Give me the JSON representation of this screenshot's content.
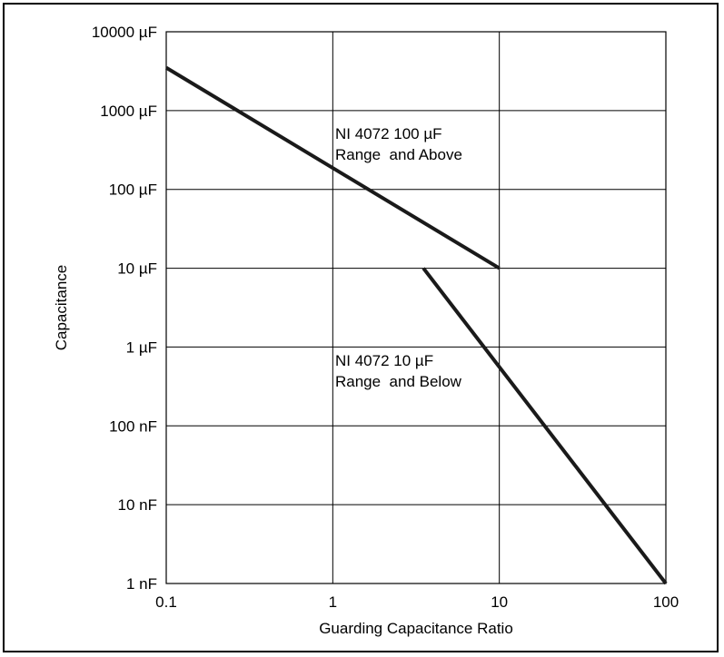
{
  "chart_data": {
    "type": "line",
    "title": "",
    "xlabel": "Guarding Capacitance Ratio",
    "ylabel": "Capacitance",
    "x_scale": "log",
    "y_scale": "log",
    "xlim": [
      0.1,
      100
    ],
    "ylim_farads": [
      1e-09,
      0.01
    ],
    "grid": true,
    "x_ticks": [
      {
        "value": 0.1,
        "label": "0.1"
      },
      {
        "value": 1,
        "label": "1"
      },
      {
        "value": 10,
        "label": "10"
      },
      {
        "value": 100,
        "label": "100"
      }
    ],
    "y_ticks": [
      {
        "value": 0.01,
        "label": "10000 µF"
      },
      {
        "value": 0.001,
        "label": "1000 µF"
      },
      {
        "value": 0.0001,
        "label": "100 µF"
      },
      {
        "value": 1e-05,
        "label": "10 µF"
      },
      {
        "value": 1e-06,
        "label": "1 µF"
      },
      {
        "value": 1e-07,
        "label": "100 nF"
      },
      {
        "value": 1e-08,
        "label": "10 nF"
      },
      {
        "value": 1e-09,
        "label": "1 nF"
      }
    ],
    "series": [
      {
        "label_lines": [
          "NI 4072 100 µF",
          "Range  and Above"
        ],
        "x": [
          0.1,
          10
        ],
        "y": [
          0.0035,
          1e-05
        ]
      },
      {
        "label_lines": [
          "NI 4072 10 µF",
          "Range  and Below"
        ],
        "x": [
          3.5,
          100
        ],
        "y": [
          1e-05,
          1e-09
        ]
      }
    ],
    "line_color": "#1a1a1a",
    "grid_color": "#000000"
  }
}
